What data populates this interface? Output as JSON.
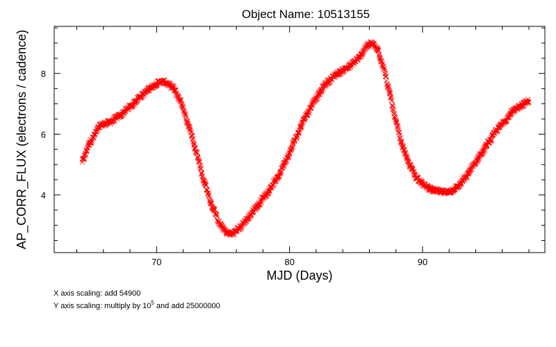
{
  "chart_data": {
    "type": "scatter",
    "title": "Object Name:  10513155",
    "xlabel": "MJD (Days)",
    "ylabel": "AP_CORR_FLUX (electrons / cadence)",
    "xlim": [
      62.3,
      99.2
    ],
    "ylim": [
      2.1,
      9.55
    ],
    "xticks": [
      70,
      80,
      90
    ],
    "yticks": [
      4,
      6,
      8
    ],
    "x_minor_step": 2,
    "y_minor_step": 0.5,
    "grid": false,
    "marker": "x",
    "marker_color": "#ff0000",
    "series": [
      {
        "x_range": [
          64.4,
          98.0
        ],
        "points": [
          [
            64.4,
            5.1
          ],
          [
            65.0,
            5.75
          ],
          [
            65.8,
            6.3
          ],
          [
            66.5,
            6.4
          ],
          [
            67.2,
            6.6
          ],
          [
            68.0,
            6.9
          ],
          [
            68.8,
            7.25
          ],
          [
            69.6,
            7.55
          ],
          [
            70.2,
            7.72
          ],
          [
            70.6,
            7.72
          ],
          [
            71.2,
            7.55
          ],
          [
            71.8,
            7.1
          ],
          [
            72.4,
            6.3
          ],
          [
            73.0,
            5.4
          ],
          [
            73.6,
            4.4
          ],
          [
            74.2,
            3.6
          ],
          [
            74.8,
            3.0
          ],
          [
            75.3,
            2.75
          ],
          [
            75.7,
            2.72
          ],
          [
            76.2,
            2.9
          ],
          [
            76.8,
            3.2
          ],
          [
            77.5,
            3.6
          ],
          [
            78.2,
            4.0
          ],
          [
            79.0,
            4.5
          ],
          [
            79.8,
            5.2
          ],
          [
            80.5,
            5.9
          ],
          [
            81.2,
            6.6
          ],
          [
            82.0,
            7.2
          ],
          [
            82.8,
            7.7
          ],
          [
            83.6,
            8.0
          ],
          [
            84.4,
            8.2
          ],
          [
            85.2,
            8.5
          ],
          [
            85.8,
            8.9
          ],
          [
            86.2,
            9.0
          ],
          [
            86.6,
            8.8
          ],
          [
            87.0,
            8.3
          ],
          [
            87.5,
            7.4
          ],
          [
            88.0,
            6.4
          ],
          [
            88.5,
            5.6
          ],
          [
            89.0,
            5.0
          ],
          [
            89.6,
            4.55
          ],
          [
            90.2,
            4.3
          ],
          [
            90.8,
            4.15
          ],
          [
            91.4,
            4.1
          ],
          [
            92.0,
            4.1
          ],
          [
            92.6,
            4.25
          ],
          [
            93.2,
            4.55
          ],
          [
            93.8,
            4.95
          ],
          [
            94.4,
            5.35
          ],
          [
            95.0,
            5.75
          ],
          [
            95.6,
            6.15
          ],
          [
            96.2,
            6.45
          ],
          [
            96.8,
            6.75
          ],
          [
            97.4,
            6.95
          ],
          [
            98.0,
            7.1
          ]
        ]
      }
    ],
    "notes": {
      "x_scaling": "X axis  scaling: add 54900",
      "y_scaling_prefix": "Y axis  scaling: multiply by 10",
      "y_scaling_exponent": "5",
      "y_scaling_suffix": " and add 25000000"
    }
  }
}
